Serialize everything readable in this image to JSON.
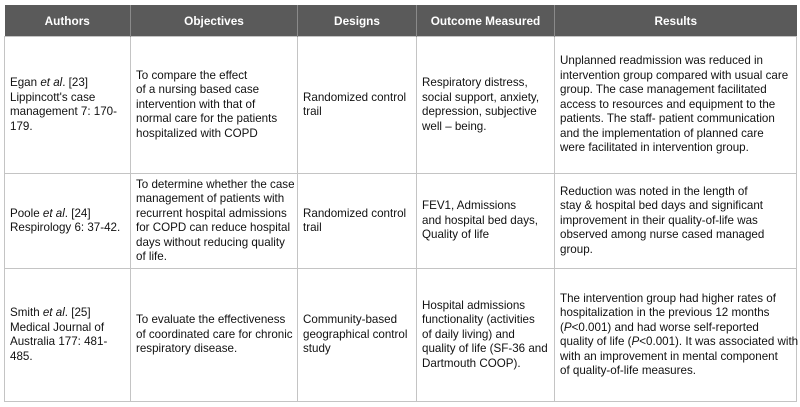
{
  "headers": [
    "Authors",
    "Objectives",
    "Designs",
    "Outcome Measured",
    "Results"
  ],
  "rows": [
    {
      "author": {
        "name": "Egan ",
        "etal": "et al",
        "ref": ". [23]",
        "lines": [
          "Lippincott's case",
          "management 7: 170-",
          "179."
        ]
      },
      "objectives": [
        "To compare the effect",
        "of a nursing based case",
        "intervention with that of",
        "normal care for the patients",
        "hospitalized with COPD"
      ],
      "design": [
        "Randomized control",
        "trail"
      ],
      "outcome": [
        "Respiratory distress,",
        "social support, anxiety,",
        "depression, subjective",
        "well – being."
      ],
      "results": [
        "Unplanned readmission was reduced in",
        "intervention group compared with usual care",
        "group. The case management facilitated",
        "access to resources and equipment to the",
        "patients. The staff- patient communication",
        "and the implementation of planned care",
        "were facilitated in intervention group."
      ]
    },
    {
      "author": {
        "name": "Poole ",
        "etal": "et al",
        "ref": ". [24]",
        "lines": [
          "Respirology 6: 37-42."
        ]
      },
      "objectives": [
        "To determine whether the case",
        "management of patients with",
        "recurrent hospital admissions",
        "for COPD can reduce hospital",
        "days without reducing quality",
        "of life."
      ],
      "design": [
        "Randomized control",
        "trail"
      ],
      "outcome": [
        "FEV1, Admissions",
        "and hospital bed days,",
        "Quality of life"
      ],
      "results": [
        "Reduction was noted in the length of",
        "stay & hospital bed days and significant",
        "improvement in their quality-of-life was",
        "observed among nurse cased managed",
        "group."
      ]
    },
    {
      "author": {
        "name": "Smith ",
        "etal": "et al",
        "ref": ". [25]",
        "lines": [
          "Medical Journal of",
          "Australia 177: 481-",
          "485."
        ]
      },
      "objectives": [
        "To evaluate the effectiveness",
        "of coordinated care for chronic",
        "respiratory disease."
      ],
      "design": [
        "Community-based",
        "geographical control",
        "study"
      ],
      "outcome": [
        "Hospital admissions",
        "functionality (activities",
        "of daily living) and",
        "quality of life (SF-36 and",
        "Dartmouth COOP)."
      ],
      "results": {
        "line1": "The intervention group had higher rates of",
        "line2": "hospitalization in the previous 12 months",
        "line3_p": "P",
        "line3_rest": "<0.001) and had worse self-reported",
        "line3_open": "(",
        "line4_a": "quality of life (",
        "line4_p": "P",
        "line4_b": "<0.001). It was associated with",
        "line5": "with an improvement in mental component",
        "line6": "of quality-of-life measures."
      }
    }
  ]
}
